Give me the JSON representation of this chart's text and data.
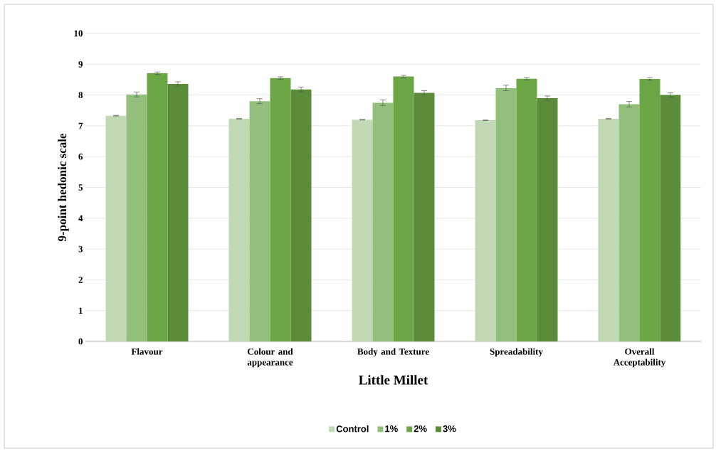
{
  "chart_data": {
    "type": "bar",
    "xlabel": "Little Millet",
    "ylabel": "9-point hedonic scale",
    "categories": [
      "Flavour",
      "Colour and appearance",
      "Body and Texture",
      "Spreadability",
      "Overall Acceptability"
    ],
    "series": [
      {
        "name": "Control",
        "color": "#c0d9b4",
        "values": [
          7.33,
          7.23,
          7.2,
          7.18,
          7.23
        ],
        "errors": [
          0.01,
          0.01,
          0.01,
          0.01,
          0.01
        ]
      },
      {
        "name": "1%",
        "color": "#93bf7c",
        "values": [
          8.02,
          7.8,
          7.75,
          8.23,
          7.7
        ],
        "errors": [
          0.08,
          0.08,
          0.09,
          0.09,
          0.09
        ]
      },
      {
        "name": "2%",
        "color": "#6aa644",
        "values": [
          8.71,
          8.55,
          8.6,
          8.53,
          8.52
        ],
        "errors": [
          0.04,
          0.04,
          0.04,
          0.04,
          0.04
        ]
      },
      {
        "name": "3%",
        "color": "#5b8c3a",
        "values": [
          8.36,
          8.18,
          8.07,
          7.9,
          8.0
        ],
        "errors": [
          0.07,
          0.08,
          0.07,
          0.07,
          0.07
        ]
      }
    ],
    "ylim": [
      0,
      10
    ],
    "yticks": [
      0,
      1,
      2,
      3,
      4,
      5,
      6,
      7,
      8,
      9,
      10
    ],
    "grid": "y",
    "legend": "bottom"
  }
}
